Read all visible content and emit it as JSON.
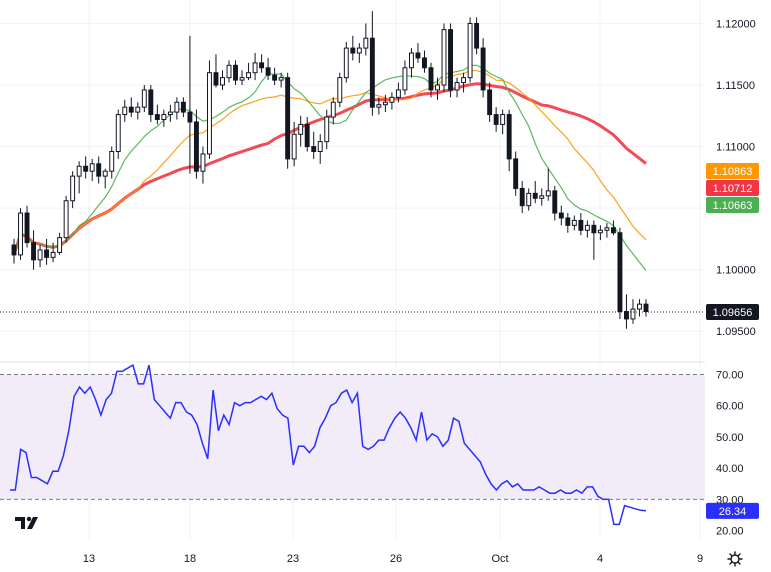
{
  "chart_data": [
    {
      "type": "candlestick",
      "title": "",
      "x_ticks": [
        "13",
        "18",
        "23",
        "26",
        "Oct",
        "4",
        "9"
      ],
      "y_ticks": [
        "1.12000",
        "1.11500",
        "1.11000",
        "1.10500",
        "1.10000",
        "1.09500"
      ],
      "ylim": [
        1.0925,
        1.1215
      ],
      "last_price": "1.09656",
      "ma_labels": [
        {
          "name": "ma-short",
          "value": "1.10863",
          "color": "#ff9800"
        },
        {
          "name": "ma-long",
          "value": "1.10712",
          "color": "#f23645"
        },
        {
          "name": "ma-mid",
          "value": "1.10663",
          "color": "#4caf50"
        }
      ],
      "candles": [
        [
          1.102,
          1.1025,
          1.1005,
          1.1012
        ],
        [
          1.1012,
          1.105,
          1.1008,
          1.1046
        ],
        [
          1.1046,
          1.1052,
          1.1018,
          1.1022
        ],
        [
          1.1022,
          1.1032,
          1.1,
          1.1008
        ],
        [
          1.1008,
          1.102,
          1.1002,
          1.1016
        ],
        [
          1.1016,
          1.1025,
          1.1004,
          1.101
        ],
        [
          1.101,
          1.1022,
          1.1006,
          1.1014
        ],
        [
          1.1014,
          1.103,
          1.1012,
          1.1026
        ],
        [
          1.1026,
          1.106,
          1.1022,
          1.1056
        ],
        [
          1.1056,
          1.108,
          1.105,
          1.1076
        ],
        [
          1.1076,
          1.1088,
          1.1062,
          1.1084
        ],
        [
          1.1084,
          1.1092,
          1.1074,
          1.108
        ],
        [
          1.108,
          1.109,
          1.1072,
          1.1086
        ],
        [
          1.1086,
          1.1092,
          1.107,
          1.1076
        ],
        [
          1.1076,
          1.1082,
          1.1066,
          1.108
        ],
        [
          1.108,
          1.11,
          1.1074,
          1.1096
        ],
        [
          1.1096,
          1.113,
          1.109,
          1.1126
        ],
        [
          1.1126,
          1.1138,
          1.112,
          1.1132
        ],
        [
          1.1132,
          1.114,
          1.1124,
          1.1128
        ],
        [
          1.1128,
          1.1136,
          1.1122,
          1.1132
        ],
        [
          1.1132,
          1.115,
          1.1128,
          1.1146
        ],
        [
          1.1146,
          1.115,
          1.112,
          1.1126
        ],
        [
          1.1126,
          1.1134,
          1.1118,
          1.1122
        ],
        [
          1.1122,
          1.113,
          1.1116,
          1.1126
        ],
        [
          1.1126,
          1.1134,
          1.112,
          1.1128
        ],
        [
          1.1128,
          1.114,
          1.1122,
          1.1136
        ],
        [
          1.1136,
          1.114,
          1.1124,
          1.1128
        ],
        [
          1.1128,
          1.119,
          1.1078,
          1.112
        ],
        [
          1.112,
          1.113,
          1.1074,
          1.108
        ],
        [
          1.108,
          1.11,
          1.107,
          1.1094
        ],
        [
          1.1094,
          1.117,
          1.109,
          1.116
        ],
        [
          1.116,
          1.1175,
          1.1148,
          1.115
        ],
        [
          1.115,
          1.1162,
          1.1146,
          1.1156
        ],
        [
          1.1156,
          1.117,
          1.1152,
          1.1166
        ],
        [
          1.1166,
          1.117,
          1.115,
          1.1154
        ],
        [
          1.1154,
          1.1162,
          1.115,
          1.1156
        ],
        [
          1.1156,
          1.1168,
          1.1154,
          1.116
        ],
        [
          1.116,
          1.1176,
          1.1154,
          1.1168
        ],
        [
          1.1168,
          1.1175,
          1.116,
          1.1164
        ],
        [
          1.1164,
          1.1172,
          1.1154,
          1.1158
        ],
        [
          1.1158,
          1.1164,
          1.115,
          1.1154
        ],
        [
          1.1154,
          1.116,
          1.1148,
          1.1156
        ],
        [
          1.1156,
          1.116,
          1.1082,
          1.109
        ],
        [
          1.109,
          1.112,
          1.1084,
          1.111
        ],
        [
          1.111,
          1.1125,
          1.11,
          1.1118
        ],
        [
          1.1118,
          1.1124,
          1.1096,
          1.11
        ],
        [
          1.11,
          1.1112,
          1.109,
          1.1096
        ],
        [
          1.1096,
          1.111,
          1.1086,
          1.1104
        ],
        [
          1.1104,
          1.113,
          1.1098,
          1.1124
        ],
        [
          1.1124,
          1.114,
          1.1118,
          1.1136
        ],
        [
          1.1136,
          1.116,
          1.1132,
          1.1156
        ],
        [
          1.1156,
          1.1185,
          1.1152,
          1.118
        ],
        [
          1.118,
          1.119,
          1.117,
          1.1176
        ],
        [
          1.1176,
          1.1184,
          1.1168,
          1.118
        ],
        [
          1.118,
          1.12,
          1.1174,
          1.1188
        ],
        [
          1.1188,
          1.121,
          1.1125,
          1.1132
        ],
        [
          1.1132,
          1.114,
          1.1126,
          1.1134
        ],
        [
          1.1134,
          1.1142,
          1.1128,
          1.1136
        ],
        [
          1.1136,
          1.1144,
          1.113,
          1.114
        ],
        [
          1.114,
          1.1152,
          1.1136,
          1.1146
        ],
        [
          1.1146,
          1.117,
          1.1142,
          1.1164
        ],
        [
          1.1164,
          1.118,
          1.1156,
          1.1176
        ],
        [
          1.1176,
          1.1184,
          1.1168,
          1.1172
        ],
        [
          1.1172,
          1.1178,
          1.116,
          1.1164
        ],
        [
          1.1164,
          1.1168,
          1.114,
          1.1146
        ],
        [
          1.1146,
          1.1156,
          1.1138,
          1.115
        ],
        [
          1.115,
          1.12,
          1.1144,
          1.1195
        ],
        [
          1.1195,
          1.12,
          1.114,
          1.1146
        ],
        [
          1.1146,
          1.1156,
          1.114,
          1.1152
        ],
        [
          1.1152,
          1.116,
          1.1144,
          1.1156
        ],
        [
          1.1156,
          1.1205,
          1.1152,
          1.12
        ],
        [
          1.12,
          1.1205,
          1.1175,
          1.118
        ],
        [
          1.118,
          1.1188,
          1.114,
          1.1146
        ],
        [
          1.1146,
          1.1152,
          1.112,
          1.1126
        ],
        [
          1.1126,
          1.1132,
          1.1112,
          1.1118
        ],
        [
          1.1118,
          1.113,
          1.111,
          1.1126
        ],
        [
          1.1126,
          1.113,
          1.108,
          1.109
        ],
        [
          1.109,
          1.1096,
          1.106,
          1.1066
        ],
        [
          1.1066,
          1.1072,
          1.1046,
          1.1052
        ],
        [
          1.1052,
          1.1066,
          1.1048,
          1.1062
        ],
        [
          1.1062,
          1.1072,
          1.1054,
          1.1058
        ],
        [
          1.1058,
          1.1066,
          1.1052,
          1.106
        ],
        [
          1.106,
          1.1082,
          1.1056,
          1.1064
        ],
        [
          1.1064,
          1.1068,
          1.104,
          1.1046
        ],
        [
          1.1046,
          1.1052,
          1.1036,
          1.1042
        ],
        [
          1.1042,
          1.1046,
          1.103,
          1.1036
        ],
        [
          1.1036,
          1.1044,
          1.1032,
          1.104
        ],
        [
          1.104,
          1.1046,
          1.1028,
          1.1032
        ],
        [
          1.1032,
          1.104,
          1.1026,
          1.1036
        ],
        [
          1.1036,
          1.104,
          1.1008,
          1.103
        ],
        [
          1.103,
          1.1036,
          1.1024,
          1.1032
        ],
        [
          1.1032,
          1.1038,
          1.1026,
          1.1034
        ],
        [
          1.1034,
          1.104,
          1.1028,
          1.103
        ],
        [
          1.103,
          1.1034,
          1.096,
          1.0966
        ],
        [
          1.0966,
          1.098,
          1.0952,
          1.096
        ],
        [
          1.096,
          1.0976,
          1.0956,
          1.0968
        ],
        [
          1.0968,
          1.0976,
          1.0962,
          1.0972
        ],
        [
          1.0972,
          1.0976,
          1.0962,
          1.0966
        ]
      ]
    },
    {
      "type": "line",
      "title": "",
      "y_ticks": [
        "70.00",
        "60.00",
        "50.00",
        "40.00",
        "30.00",
        "20.00"
      ],
      "ylim": [
        17,
        74
      ],
      "band": [
        30,
        70
      ],
      "last_value": "26.34",
      "line_color": "#2a2eff",
      "values": [
        33,
        33,
        46,
        45,
        37,
        37,
        36,
        35,
        39,
        39,
        44,
        52,
        63,
        66,
        64,
        66,
        62,
        57,
        62,
        64,
        71,
        71,
        72,
        73,
        67,
        67,
        73,
        62,
        60,
        58,
        56,
        61,
        61,
        58,
        57,
        54,
        48,
        43,
        65,
        52,
        57,
        54,
        61,
        60,
        61,
        61,
        62,
        63,
        62,
        64,
        59,
        57,
        56,
        41,
        47,
        47,
        45,
        47,
        53,
        56,
        60,
        61,
        64,
        65,
        61,
        64,
        47,
        46,
        47,
        49,
        49,
        53,
        56,
        58,
        56,
        53,
        49,
        58,
        49,
        51,
        50,
        47,
        49,
        56,
        55,
        48,
        46,
        44,
        42,
        38,
        35,
        33,
        35,
        36,
        34,
        35,
        33,
        33,
        33,
        34,
        33,
        32,
        32,
        33,
        32,
        32,
        33,
        32,
        34,
        34,
        31,
        30,
        30,
        22,
        22,
        28,
        27.5,
        27,
        26.5,
        26.34
      ]
    }
  ],
  "logo_text": "TV"
}
